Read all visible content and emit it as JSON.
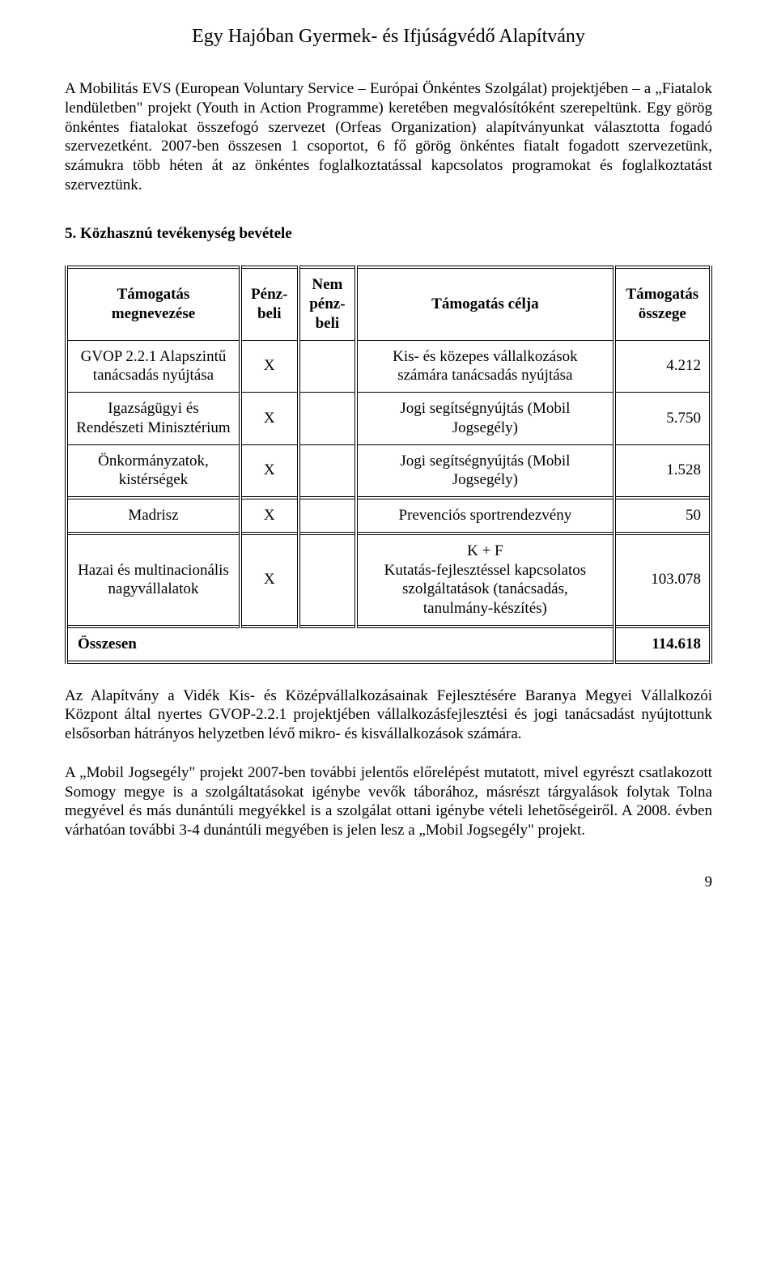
{
  "header": {
    "title": "Egy Hajóban Gyermek- és Ifjúságvédő Alapítvány"
  },
  "paragraphs": {
    "p1": "A Mobilitás EVS (European Voluntary Service – Európai Önkéntes Szolgálat) projektjében – a „Fiatalok lendületben\" projekt (Youth in Action Programme) keretében megvalósítóként szerepeltünk. Egy görög önkéntes fiatalokat összefogó szervezet (Orfeas Organization) alapítványunkat választotta fogadó szervezetként. 2007-ben összesen 1 csoportot, 6 fő görög önkéntes fiatalt fogadott szervezetünk, számukra több héten át az önkéntes foglalkoztatással kapcsolatos programokat és foglalkoztatást szerveztünk.",
    "p2": "Az Alapítvány a Vidék Kis- és Középvállalkozásainak Fejlesztésére Baranya Megyei Vállalkozói Központ által nyertes GVOP-2.2.1 projektjében vállalkozásfejlesztési és jogi tanácsadást nyújtottunk elsősorban hátrányos helyzetben lévő mikro- és kisvállalkozások számára.",
    "p3": "A „Mobil Jogsegély\" projekt 2007-ben további jelentős előrelépést mutatott, mivel egyrészt csatlakozott Somogy megye is a szolgáltatásokat igénybe vevők táborához, másrészt tárgyalások folytak Tolna megyével és más dunántúli megyékkel is a szolgálat ottani igénybe vételi lehetőségeiről. A 2008. évben várhatóan további 3-4 dunántúli megyében is jelen lesz a „Mobil Jogsegély\" projekt."
  },
  "section": {
    "heading": "5. Közhasznú tevékenység bevétele"
  },
  "table": {
    "headers": {
      "name": "Támogatás megnevezése",
      "cash": "Pénz-beli",
      "noncash": "Nem pénz-beli",
      "purpose": "Támogatás célja",
      "amount": "Támogatás összege"
    },
    "rows": [
      {
        "name": "GVOP 2.2.1 Alapszintű tanácsadás nyújtása",
        "cash": "X",
        "noncash": "",
        "purpose": "Kis- és közepes vállalkozások számára tanácsadás nyújtása",
        "amount": "4.212"
      },
      {
        "name": "Igazságügyi és Rendészeti Minisztérium",
        "cash": "X",
        "noncash": "",
        "purpose": "Jogi segítségnyújtás (Mobil Jogsegély)",
        "amount": "5.750"
      },
      {
        "name": "Önkormányzatok, kistérségek",
        "cash": "X",
        "noncash": "",
        "purpose": "Jogi segítségnyújtás (Mobil Jogsegély)",
        "amount": "1.528"
      },
      {
        "name": "Madrisz",
        "cash": "X",
        "noncash": "",
        "purpose": "Prevenciós sportrendezvény",
        "amount": "50"
      },
      {
        "name": "Hazai és multinacionális nagyvállalatok",
        "cash": "X",
        "noncash": "",
        "purpose": "K + F\nKutatás-fejlesztéssel kapcsolatos szolgáltatások (tanácsadás, tanulmány-készítés)",
        "amount": "103.078"
      }
    ],
    "total": {
      "label": "Összesen",
      "amount": "114.618"
    }
  },
  "page_number": "9"
}
